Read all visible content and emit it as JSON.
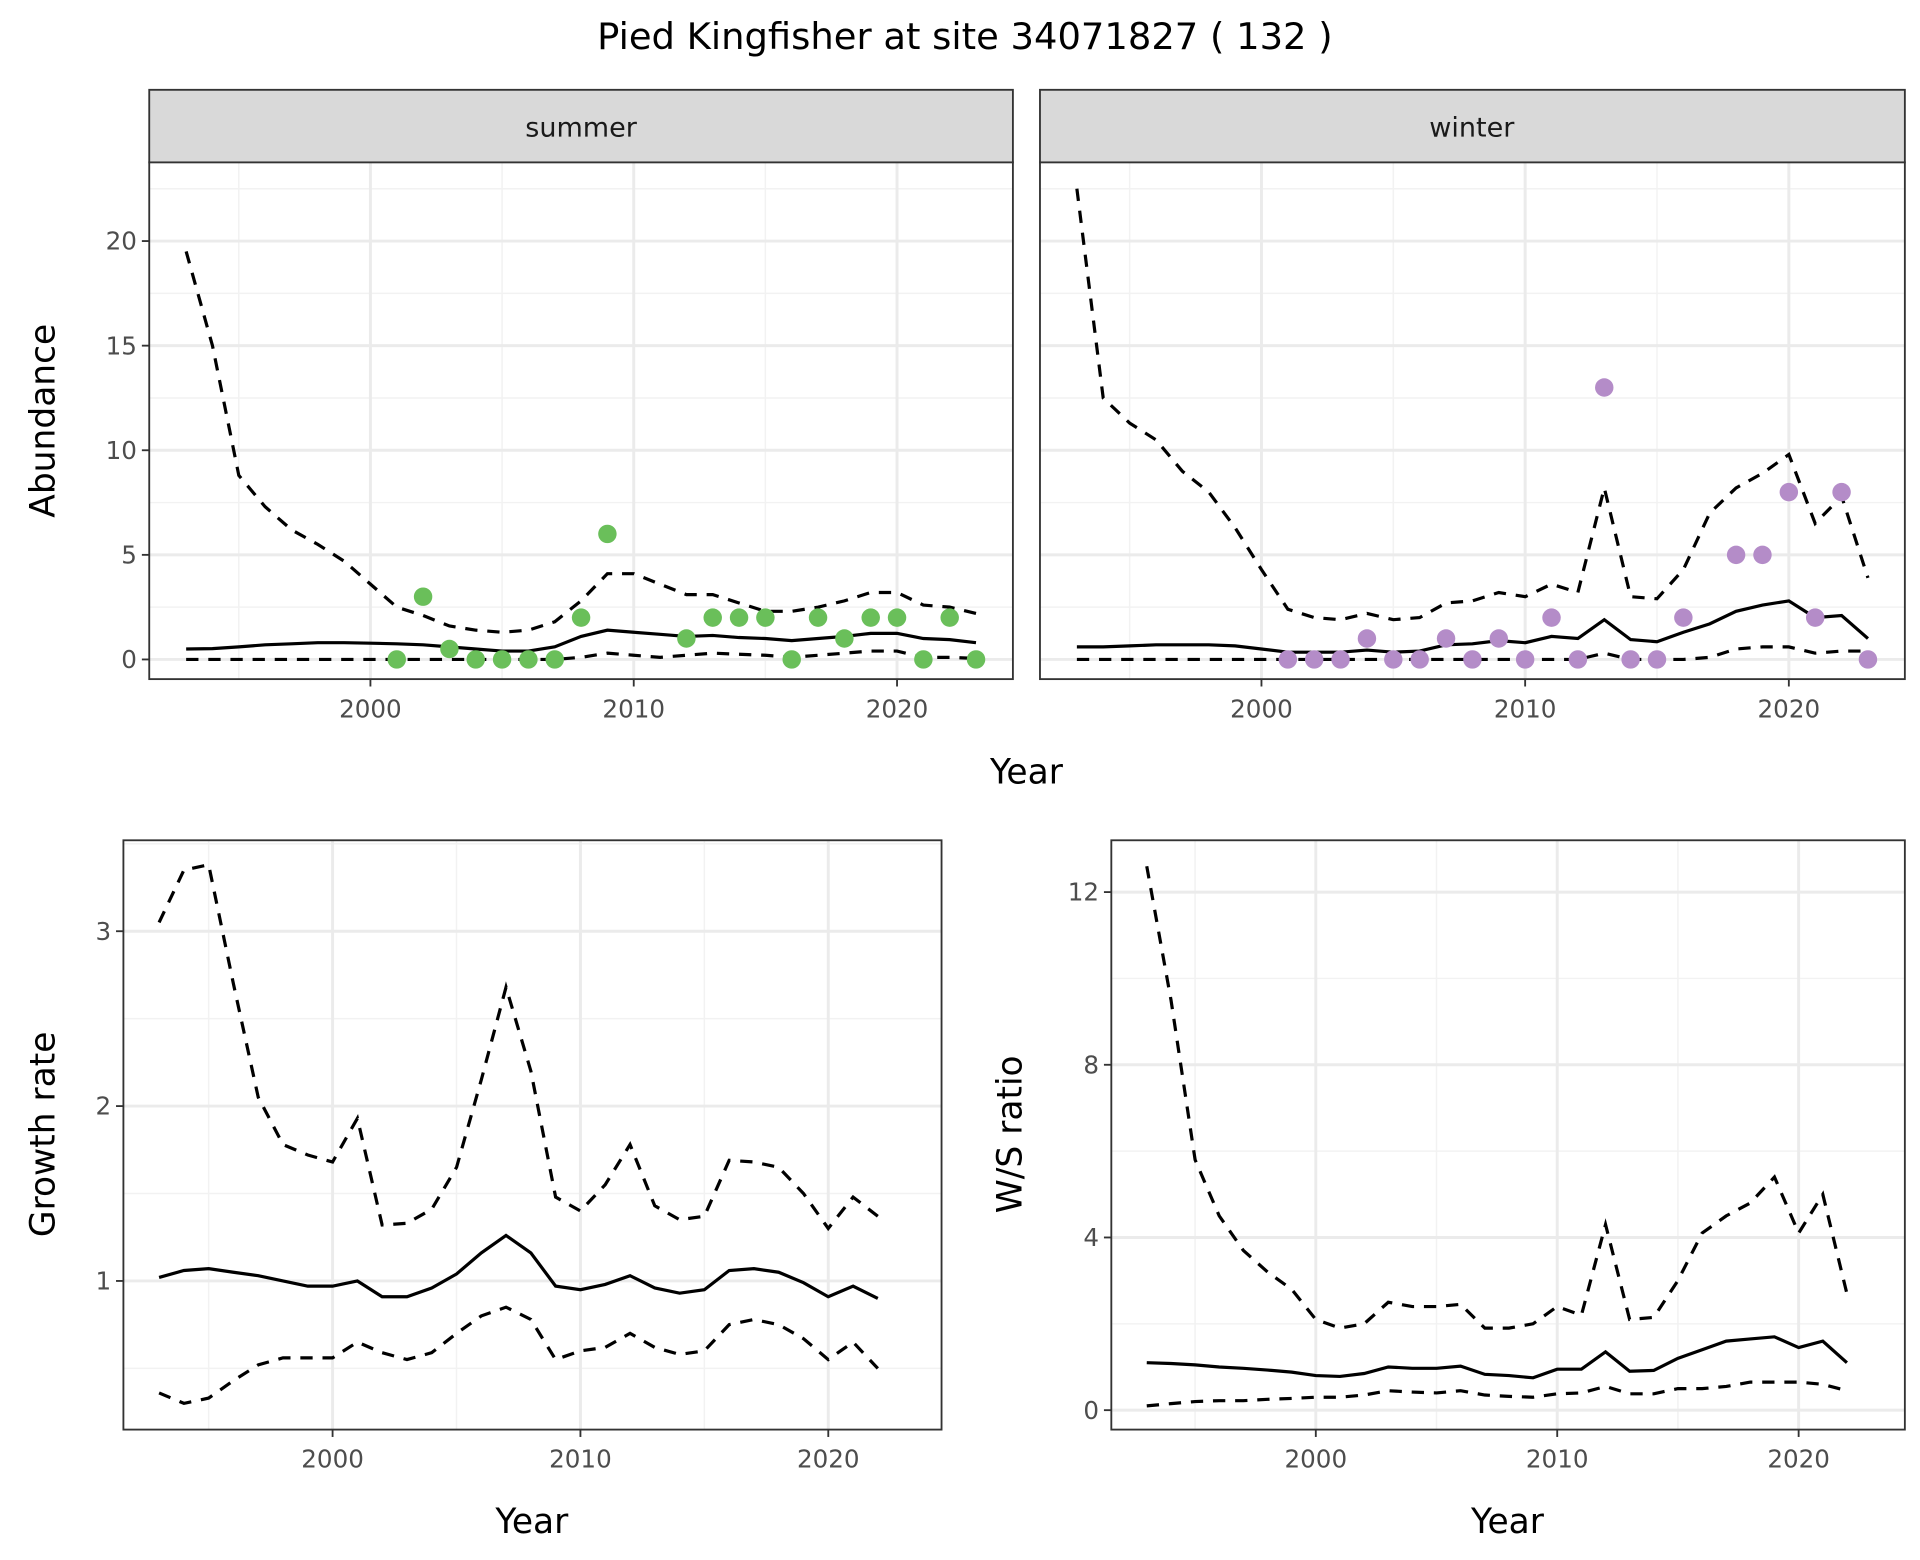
{
  "title": "Pied Kingfisher at site 34071827 ( 132 )",
  "colors": {
    "summer": "#6abf5a",
    "winter": "#b48cc8",
    "line": "#000000",
    "strip": "#d9d9d9"
  },
  "chart_data": [
    {
      "type": "line+scatter",
      "facet": "summer",
      "xlabel": "Year",
      "ylabel": "Abundance",
      "xlim": [
        1991.6,
        2024.4
      ],
      "ylim": [
        -0.94,
        23.76
      ],
      "xticks": [
        2000,
        2010,
        2020
      ],
      "yticks": [
        0,
        5,
        10,
        15,
        20
      ],
      "x": [
        1993,
        1994,
        1995,
        1996,
        1997,
        1998,
        1999,
        2000,
        2001,
        2002,
        2003,
        2004,
        2005,
        2006,
        2007,
        2008,
        2009,
        2010,
        2011,
        2012,
        2013,
        2014,
        2015,
        2016,
        2017,
        2018,
        2019,
        2020,
        2021,
        2022,
        2023
      ],
      "mean": [
        0.5,
        0.52,
        0.6,
        0.7,
        0.75,
        0.8,
        0.8,
        0.78,
        0.75,
        0.7,
        0.6,
        0.5,
        0.4,
        0.4,
        0.6,
        1.1,
        1.4,
        1.3,
        1.2,
        1.1,
        1.15,
        1.05,
        1.0,
        0.9,
        1.0,
        1.1,
        1.25,
        1.25,
        1.0,
        0.95,
        0.8
      ],
      "upper": [
        19.5,
        15,
        8.8,
        7.3,
        6.2,
        5.5,
        4.7,
        3.6,
        2.5,
        2.1,
        1.6,
        1.4,
        1.3,
        1.4,
        1.8,
        2.8,
        4.1,
        4.1,
        3.6,
        3.1,
        3.1,
        2.7,
        2.3,
        2.3,
        2.5,
        2.8,
        3.2,
        3.2,
        2.6,
        2.5,
        2.2
      ],
      "lower": [
        0,
        0,
        0,
        0,
        0,
        0,
        0,
        0,
        0,
        0,
        0,
        0,
        0,
        0,
        0,
        0.1,
        0.3,
        0.2,
        0.1,
        0.2,
        0.3,
        0.25,
        0.2,
        0.1,
        0.2,
        0.3,
        0.4,
        0.4,
        0.1,
        0.1,
        0.05
      ],
      "points": {
        "x": [
          2001,
          2002,
          2003,
          2004,
          2005,
          2006,
          2007,
          2008,
          2009,
          2012,
          2013,
          2014,
          2015,
          2016,
          2017,
          2018,
          2019,
          2020,
          2021,
          2022,
          2023
        ],
        "y": [
          0,
          3,
          0.5,
          0,
          0,
          0,
          0,
          2,
          6,
          1,
          2,
          2,
          2,
          0,
          2,
          1,
          2,
          2,
          0,
          2,
          0
        ]
      }
    },
    {
      "type": "line+scatter",
      "facet": "winter",
      "xlabel": "Year",
      "ylabel": "Abundance",
      "xlim": [
        1991.6,
        2024.4
      ],
      "ylim": [
        -0.94,
        23.76
      ],
      "xticks": [
        2000,
        2010,
        2020
      ],
      "yticks": [
        0,
        5,
        10,
        15,
        20
      ],
      "x": [
        1993,
        1994,
        1995,
        1996,
        1997,
        1998,
        1999,
        2000,
        2001,
        2002,
        2003,
        2004,
        2005,
        2006,
        2007,
        2008,
        2009,
        2010,
        2011,
        2012,
        2013,
        2014,
        2015,
        2016,
        2017,
        2018,
        2019,
        2020,
        2021,
        2022,
        2023
      ],
      "mean": [
        0.6,
        0.6,
        0.65,
        0.7,
        0.7,
        0.7,
        0.65,
        0.5,
        0.35,
        0.35,
        0.35,
        0.45,
        0.35,
        0.4,
        0.7,
        0.75,
        0.9,
        0.8,
        1.1,
        1.0,
        1.9,
        0.95,
        0.85,
        1.3,
        1.7,
        2.3,
        2.6,
        2.8,
        2.0,
        2.1,
        1.0
      ],
      "upper": [
        22.5,
        12.5,
        11.3,
        10.5,
        9,
        8,
        6.3,
        4.3,
        2.4,
        2.0,
        1.9,
        2.2,
        1.9,
        2.0,
        2.7,
        2.8,
        3.2,
        3.0,
        3.6,
        3.2,
        8.2,
        3.0,
        2.9,
        4.3,
        7.0,
        8.2,
        8.9,
        9.8,
        6.5,
        7.8,
        3.9
      ],
      "lower": [
        0,
        0,
        0,
        0,
        0,
        0,
        0,
        0,
        0,
        0,
        0,
        0,
        0,
        0,
        0,
        0,
        0,
        0,
        0,
        0,
        0.3,
        0,
        0,
        0,
        0.1,
        0.5,
        0.6,
        0.6,
        0.3,
        0.4,
        0.4
      ],
      "points": {
        "x": [
          2001,
          2002,
          2003,
          2004,
          2005,
          2006,
          2007,
          2008,
          2009,
          2010,
          2011,
          2012,
          2013,
          2014,
          2015,
          2016,
          2018,
          2019,
          2020,
          2021,
          2022,
          2023
        ],
        "y": [
          0,
          0,
          0,
          1,
          0,
          0,
          1,
          0,
          1,
          0,
          2,
          0,
          13,
          0,
          0,
          2,
          5,
          5,
          8,
          2,
          8,
          0
        ]
      }
    },
    {
      "type": "line",
      "xlabel": "Year",
      "ylabel": "Growth rate",
      "xlim": [
        1991.56,
        2024.57
      ],
      "ylim": [
        0.15,
        3.52
      ],
      "xticks": [
        2000,
        2010,
        2020
      ],
      "yticks": [
        1,
        2,
        3
      ],
      "x": [
        1993,
        1994,
        1995,
        1996,
        1997,
        1998,
        1999,
        2000,
        2001,
        2002,
        2003,
        2004,
        2005,
        2006,
        2007,
        2008,
        2009,
        2010,
        2011,
        2012,
        2013,
        2014,
        2015,
        2016,
        2017,
        2018,
        2019,
        2020,
        2021,
        2022
      ],
      "mean": [
        1.02,
        1.06,
        1.07,
        1.05,
        1.03,
        1.0,
        0.97,
        0.97,
        1.0,
        0.91,
        0.91,
        0.96,
        1.04,
        1.16,
        1.26,
        1.16,
        0.97,
        0.95,
        0.98,
        1.03,
        0.96,
        0.93,
        0.95,
        1.06,
        1.07,
        1.05,
        0.99,
        0.91,
        0.97,
        0.9
      ],
      "upper": [
        3.05,
        3.35,
        3.38,
        2.7,
        2.05,
        1.78,
        1.72,
        1.68,
        1.93,
        1.32,
        1.33,
        1.41,
        1.65,
        2.15,
        2.68,
        2.2,
        1.48,
        1.4,
        1.55,
        1.78,
        1.43,
        1.35,
        1.37,
        1.69,
        1.68,
        1.65,
        1.5,
        1.3,
        1.48,
        1.37
      ],
      "lower": [
        0.36,
        0.3,
        0.33,
        0.43,
        0.52,
        0.56,
        0.56,
        0.56,
        0.65,
        0.59,
        0.55,
        0.59,
        0.7,
        0.8,
        0.85,
        0.78,
        0.55,
        0.6,
        0.62,
        0.7,
        0.62,
        0.58,
        0.6,
        0.75,
        0.78,
        0.75,
        0.67,
        0.55,
        0.65,
        0.5
      ]
    },
    {
      "type": "line",
      "xlabel": "Year",
      "ylabel": "W/S ratio",
      "xlim": [
        1991.53,
        2024.4
      ],
      "ylim": [
        -0.45,
        13.2
      ],
      "xticks": [
        2000,
        2010,
        2020
      ],
      "yticks": [
        0,
        4,
        8,
        12
      ],
      "x": [
        1993,
        1994,
        1995,
        1996,
        1997,
        1998,
        1999,
        2000,
        2001,
        2002,
        2003,
        2004,
        2005,
        2006,
        2007,
        2008,
        2009,
        2010,
        2011,
        2012,
        2013,
        2014,
        2015,
        2016,
        2017,
        2018,
        2019,
        2020,
        2021,
        2022
      ],
      "mean": [
        1.1,
        1.08,
        1.05,
        1.0,
        0.97,
        0.93,
        0.88,
        0.8,
        0.78,
        0.85,
        1.0,
        0.97,
        0.97,
        1.02,
        0.83,
        0.8,
        0.75,
        0.95,
        0.95,
        1.35,
        0.9,
        0.92,
        1.2,
        1.4,
        1.6,
        1.65,
        1.7,
        1.45,
        1.6,
        1.1
      ],
      "upper": [
        12.6,
        9.5,
        5.8,
        4.5,
        3.7,
        3.2,
        2.8,
        2.1,
        1.9,
        2.0,
        2.5,
        2.4,
        2.4,
        2.45,
        1.9,
        1.9,
        2.0,
        2.4,
        2.2,
        4.3,
        2.1,
        2.15,
        3.0,
        4.1,
        4.5,
        4.8,
        5.4,
        4.1,
        5.0,
        2.7
      ],
      "lower": [
        0.1,
        0.15,
        0.2,
        0.22,
        0.22,
        0.25,
        0.27,
        0.3,
        0.3,
        0.35,
        0.45,
        0.42,
        0.4,
        0.45,
        0.35,
        0.32,
        0.3,
        0.38,
        0.4,
        0.55,
        0.38,
        0.38,
        0.5,
        0.5,
        0.55,
        0.65,
        0.65,
        0.65,
        0.6,
        0.45
      ]
    }
  ]
}
